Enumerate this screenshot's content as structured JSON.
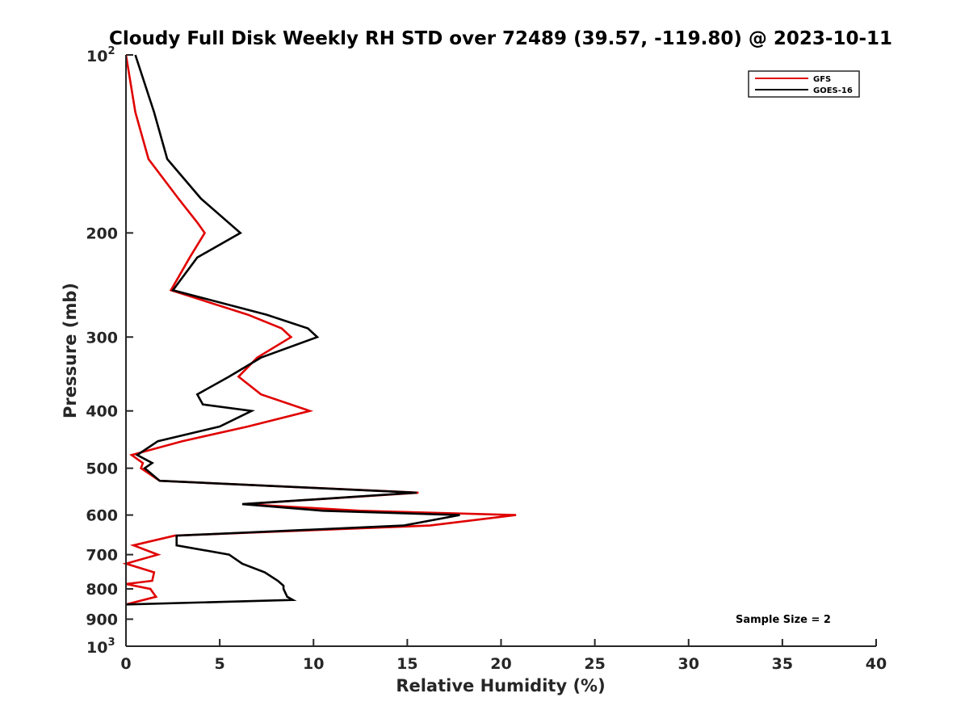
{
  "chart_data": {
    "type": "line",
    "title": "Cloudy Full Disk Weekly RH STD over 72489 (39.57, -119.80) @ 2023-10-11",
    "xlabel": "Relative Humidity (%)",
    "ylabel": "Pressure (mb)",
    "xlim": [
      0,
      40
    ],
    "ylim": [
      100,
      1000
    ],
    "y_scale": "log",
    "y_reversed": true,
    "x_ticks": [
      "0",
      "5",
      "10",
      "15",
      "20",
      "25",
      "30",
      "35",
      "40"
    ],
    "y_ticks": [
      {
        "value": 100,
        "label": "10",
        "sup": "2"
      },
      {
        "value": 200,
        "label": "200",
        "sup": ""
      },
      {
        "value": 300,
        "label": "300",
        "sup": ""
      },
      {
        "value": 400,
        "label": "400",
        "sup": ""
      },
      {
        "value": 500,
        "label": "500",
        "sup": ""
      },
      {
        "value": 600,
        "label": "600",
        "sup": ""
      },
      {
        "value": 700,
        "label": "700",
        "sup": ""
      },
      {
        "value": 800,
        "label": "800",
        "sup": ""
      },
      {
        "value": 900,
        "label": "900",
        "sup": ""
      },
      {
        "value": 1000,
        "label": "10",
        "sup": "3"
      }
    ],
    "grid": false,
    "legend_position": "top-right",
    "series": [
      {
        "name": "GFS",
        "color": "#e00000",
        "points": [
          [
            0.0,
            100
          ],
          [
            0.5,
            125
          ],
          [
            1.2,
            150
          ],
          [
            2.8,
            175
          ],
          [
            3.8,
            192
          ],
          [
            4.2,
            200
          ],
          [
            3.4,
            220
          ],
          [
            2.4,
            250
          ],
          [
            6.5,
            275
          ],
          [
            8.3,
            290
          ],
          [
            8.8,
            300
          ],
          [
            7.0,
            325
          ],
          [
            6.0,
            350
          ],
          [
            7.2,
            375
          ],
          [
            9.8,
            400
          ],
          [
            6.5,
            425
          ],
          [
            3.0,
            450
          ],
          [
            0.3,
            475
          ],
          [
            0.9,
            490
          ],
          [
            0.8,
            500
          ],
          [
            1.8,
            525
          ],
          [
            15.6,
            550
          ],
          [
            6.3,
            575
          ],
          [
            12.5,
            590
          ],
          [
            20.8,
            600
          ],
          [
            16.2,
            625
          ],
          [
            2.6,
            650
          ],
          [
            0.4,
            675
          ],
          [
            1.7,
            700
          ],
          [
            0.0,
            725
          ],
          [
            1.5,
            750
          ],
          [
            1.4,
            775
          ],
          [
            0.0,
            785
          ],
          [
            1.3,
            800
          ],
          [
            1.6,
            825
          ],
          [
            0.0,
            850
          ]
        ]
      },
      {
        "name": "GOES-16",
        "color": "#000000",
        "points": [
          [
            0.5,
            100
          ],
          [
            1.5,
            125
          ],
          [
            2.2,
            150
          ],
          [
            4.0,
            175
          ],
          [
            6.1,
            200
          ],
          [
            3.8,
            220
          ],
          [
            2.5,
            250
          ],
          [
            7.5,
            275
          ],
          [
            9.7,
            290
          ],
          [
            10.2,
            300
          ],
          [
            7.2,
            325
          ],
          [
            5.5,
            350
          ],
          [
            3.8,
            375
          ],
          [
            4.1,
            390
          ],
          [
            6.7,
            400
          ],
          [
            5.0,
            425
          ],
          [
            1.7,
            450
          ],
          [
            0.6,
            475
          ],
          [
            1.4,
            490
          ],
          [
            1.0,
            500
          ],
          [
            1.8,
            525
          ],
          [
            15.5,
            550
          ],
          [
            6.2,
            575
          ],
          [
            10.5,
            590
          ],
          [
            17.8,
            600
          ],
          [
            14.8,
            625
          ],
          [
            2.7,
            650
          ],
          [
            2.7,
            675
          ],
          [
            5.5,
            700
          ],
          [
            6.2,
            725
          ],
          [
            7.4,
            750
          ],
          [
            8.1,
            775
          ],
          [
            8.4,
            790
          ],
          [
            8.4,
            800
          ],
          [
            8.6,
            825
          ],
          [
            8.9,
            835
          ],
          [
            0.0,
            850
          ]
        ]
      }
    ],
    "annotation": "Sample Size = 2"
  }
}
